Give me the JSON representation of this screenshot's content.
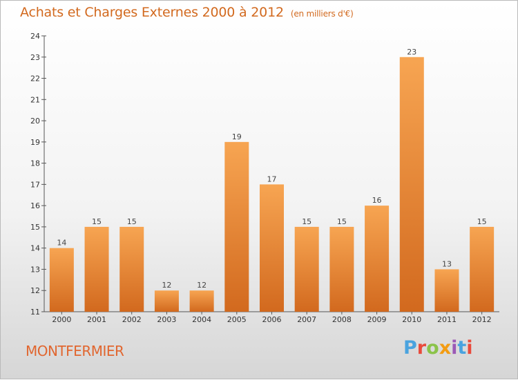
{
  "header": {
    "title": "Achats et Charges Externes 2000 à 2012",
    "subtitle": "(en milliers d'€)"
  },
  "footer": {
    "city": "MONTFERMIER",
    "logo": "Proxiti"
  },
  "colors": {
    "bar_light": "#f7a552",
    "bar_dark": "#d2691e",
    "title": "#d2691e",
    "logo_letters": [
      "#4aa3df",
      "#e94b3c",
      "#8bc34a",
      "#f39c12",
      "#9b59b6",
      "#4aa3df",
      "#e94b3c"
    ]
  },
  "chart_data": {
    "type": "bar",
    "title": "Achats et Charges Externes 2000 à 2012",
    "subtitle": "(en milliers d'€)",
    "xlabel": "",
    "ylabel": "",
    "categories": [
      "2000",
      "2001",
      "2002",
      "2003",
      "2004",
      "2005",
      "2006",
      "2007",
      "2008",
      "2009",
      "2010",
      "2011",
      "2012"
    ],
    "values": [
      14,
      15,
      15,
      12,
      12,
      19,
      17,
      15,
      15,
      16,
      23,
      13,
      15
    ],
    "ylim": [
      11,
      24
    ],
    "yticks": [
      11,
      12,
      13,
      14,
      15,
      16,
      17,
      18,
      19,
      20,
      21,
      22,
      23,
      24
    ],
    "grid": false,
    "legend": "none"
  }
}
